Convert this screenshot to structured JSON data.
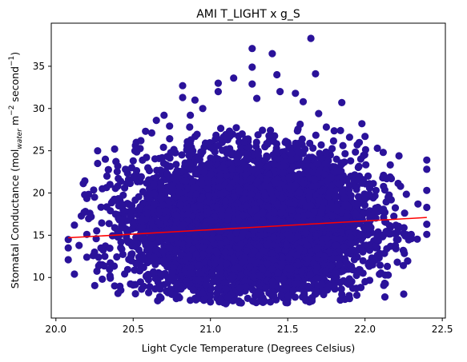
{
  "chart_data": {
    "type": "scatter",
    "title": "AMI T_LIGHT x g_S",
    "xlabel": "Light Cycle Temperature (Degrees Celsius)",
    "ylabel": {
      "text": "Stomatal Conductance (mol",
      "sub": "water",
      "mid1": " m",
      "sup1": "−2",
      "mid2": " second",
      "sup2": "−1",
      "end": ")"
    },
    "xlim": [
      19.97,
      22.52
    ],
    "ylim": [
      5.2,
      40.1
    ],
    "xticks": [
      {
        "value": 20.0,
        "label": "20.0"
      },
      {
        "value": 20.5,
        "label": "20.5"
      },
      {
        "value": 21.0,
        "label": "21.0"
      },
      {
        "value": 21.5,
        "label": "21.5"
      },
      {
        "value": 22.0,
        "label": "22.0"
      },
      {
        "value": 22.5,
        "label": "22.5"
      }
    ],
    "yticks": [
      {
        "value": 10,
        "label": "10"
      },
      {
        "value": 15,
        "label": "15"
      },
      {
        "value": 20,
        "label": "20"
      },
      {
        "value": 25,
        "label": "25"
      },
      {
        "value": 30,
        "label": "30"
      },
      {
        "value": 35,
        "label": "35"
      }
    ],
    "grid": false,
    "point_color": "#2a129a",
    "line_color": "#ff0000",
    "trend_line": {
      "x": [
        20.08,
        22.4
      ],
      "y": [
        14.7,
        17.1
      ]
    },
    "points": [
      [
        20.08,
        12.1
      ],
      [
        20.08,
        13.5
      ],
      [
        20.08,
        14.5
      ],
      [
        20.12,
        10.4
      ],
      [
        20.12,
        16.2
      ],
      [
        20.15,
        13.8
      ],
      [
        20.2,
        12.4
      ],
      [
        20.2,
        15.1
      ],
      [
        20.22,
        17.6
      ],
      [
        20.25,
        13.0
      ],
      [
        20.25,
        19.5
      ],
      [
        20.27,
        25.0
      ],
      [
        20.27,
        23.5
      ],
      [
        20.3,
        9.8
      ],
      [
        20.3,
        11.5
      ],
      [
        20.3,
        20.5
      ],
      [
        20.32,
        24.0
      ],
      [
        20.33,
        22.0
      ],
      [
        20.35,
        21.0
      ],
      [
        20.35,
        10.2
      ],
      [
        20.38,
        25.2
      ],
      [
        20.38,
        9.0
      ],
      [
        20.4,
        23.2
      ],
      [
        20.4,
        14.8
      ],
      [
        20.42,
        8.5
      ],
      [
        20.45,
        22.8
      ],
      [
        20.47,
        21.6
      ],
      [
        20.5,
        23.8
      ],
      [
        20.52,
        26.0
      ],
      [
        20.55,
        26.2
      ],
      [
        20.58,
        27.3
      ],
      [
        20.62,
        27.1
      ],
      [
        20.65,
        28.6
      ],
      [
        20.7,
        29.2
      ],
      [
        20.75,
        8.0
      ],
      [
        20.8,
        7.6
      ],
      [
        20.82,
        32.7
      ],
      [
        20.82,
        31.3
      ],
      [
        20.87,
        29.2
      ],
      [
        20.9,
        31.0
      ],
      [
        20.95,
        30.0
      ],
      [
        21.0,
        7.1
      ],
      [
        21.05,
        33.0
      ],
      [
        21.05,
        32.0
      ],
      [
        21.1,
        6.9
      ],
      [
        21.15,
        33.6
      ],
      [
        21.2,
        7.0
      ],
      [
        21.27,
        37.1
      ],
      [
        21.27,
        34.9
      ],
      [
        21.27,
        32.9
      ],
      [
        21.3,
        31.2
      ],
      [
        21.35,
        7.2
      ],
      [
        21.4,
        36.5
      ],
      [
        21.43,
        34.0
      ],
      [
        21.45,
        32.0
      ],
      [
        21.5,
        7.4
      ],
      [
        21.55,
        31.8
      ],
      [
        21.6,
        30.8
      ],
      [
        21.65,
        38.3
      ],
      [
        21.68,
        34.1
      ],
      [
        21.7,
        29.4
      ],
      [
        21.75,
        27.8
      ],
      [
        21.8,
        9.0
      ],
      [
        21.85,
        30.7
      ],
      [
        21.9,
        26.6
      ],
      [
        21.95,
        25.7
      ],
      [
        21.98,
        28.2
      ],
      [
        22.0,
        26.7
      ],
      [
        22.02,
        22.0
      ],
      [
        22.05,
        11.5
      ],
      [
        22.08,
        25.3
      ],
      [
        22.12,
        22.1
      ],
      [
        22.15,
        10.3
      ],
      [
        22.15,
        19.5
      ],
      [
        22.17,
        21.7
      ],
      [
        22.2,
        13.4
      ],
      [
        22.22,
        24.4
      ],
      [
        22.23,
        20.8
      ],
      [
        22.25,
        15.2
      ],
      [
        22.3,
        14.6
      ],
      [
        22.4,
        23.9
      ],
      [
        22.4,
        22.8
      ],
      [
        22.4,
        20.3
      ],
      [
        22.4,
        18.3
      ],
      [
        22.4,
        16.3
      ],
      [
        22.4,
        15.1
      ],
      [
        21.9,
        7.5
      ],
      [
        21.85,
        8.0
      ],
      [
        22.0,
        9.5
      ],
      [
        20.6,
        8.2
      ]
    ],
    "cloud": {
      "x_center": 21.27,
      "x_sd": 0.36,
      "x_min": 20.15,
      "x_max": 22.35,
      "y_center": 16.2,
      "y_sd": 4.1,
      "y_min": 7.0,
      "y_max": 29.5
    }
  }
}
